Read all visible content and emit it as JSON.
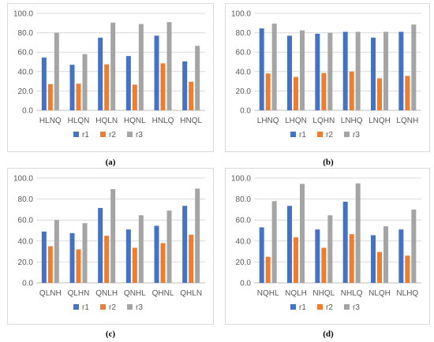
{
  "series_names": [
    "r1",
    "r2",
    "r3"
  ],
  "colors": {
    "r1": "#4472C4",
    "r2": "#ED7D31",
    "r3": "#A5A5A5",
    "grid": "#d9d9d9",
    "axis": "#bfbfbf"
  },
  "chart_data": [
    {
      "type": "bar",
      "caption": "(a)",
      "categories": [
        "HLNQ",
        "HLQN",
        "HQLN",
        "HQNL",
        "HNLQ",
        "HNQL"
      ],
      "series": [
        {
          "name": "r1",
          "values": [
            54.5,
            47.0,
            75.0,
            56.0,
            77.0,
            50.5
          ]
        },
        {
          "name": "r2",
          "values": [
            27.0,
            27.5,
            47.5,
            26.5,
            48.5,
            29.5
          ]
        },
        {
          "name": "r3",
          "values": [
            80.0,
            58.0,
            90.5,
            89.0,
            91.0,
            66.5
          ]
        }
      ],
      "ylim": [
        0,
        100
      ],
      "yticks": [
        "0.0",
        "20.0",
        "40.0",
        "60.0",
        "80.0",
        "100.0"
      ],
      "legend": "bottom"
    },
    {
      "type": "bar",
      "caption": "(b)",
      "categories": [
        "LHNQ",
        "LHQN",
        "LQHN",
        "LNHQ",
        "LNQH",
        "LQNH"
      ],
      "series": [
        {
          "name": "r1",
          "values": [
            84.5,
            77.0,
            79.0,
            81.0,
            75.0,
            81.0
          ]
        },
        {
          "name": "r2",
          "values": [
            38.0,
            34.5,
            38.5,
            40.0,
            33.0,
            35.5
          ]
        },
        {
          "name": "r3",
          "values": [
            89.5,
            82.5,
            80.0,
            81.0,
            81.0,
            88.5
          ]
        }
      ],
      "ylim": [
        0,
        100
      ],
      "yticks": [
        "0.0",
        "20.0",
        "40.0",
        "60.0",
        "80.0",
        "100.0"
      ],
      "legend": "bottom"
    },
    {
      "type": "bar",
      "caption": "(c)",
      "categories": [
        "QLNH",
        "QLHN",
        "QNLH",
        "QNHL",
        "QHNL",
        "QHLN"
      ],
      "series": [
        {
          "name": "r1",
          "values": [
            49.0,
            47.5,
            71.5,
            51.0,
            54.5,
            73.5
          ]
        },
        {
          "name": "r2",
          "values": [
            35.0,
            32.0,
            45.0,
            33.5,
            38.0,
            46.0
          ]
        },
        {
          "name": "r3",
          "values": [
            60.0,
            57.0,
            89.5,
            64.5,
            69.0,
            90.0
          ]
        }
      ],
      "ylim": [
        0,
        100
      ],
      "yticks": [
        "0.0",
        "20.0",
        "40.0",
        "60.0",
        "80.0",
        "100.0"
      ],
      "legend": "bottom"
    },
    {
      "type": "bar",
      "caption": "(d)",
      "categories": [
        "NQHL",
        "NQLH",
        "NHQL",
        "NHLQ",
        "NLQH",
        "NLHQ"
      ],
      "series": [
        {
          "name": "r1",
          "values": [
            53.0,
            73.5,
            51.0,
            77.5,
            45.5,
            51.0
          ]
        },
        {
          "name": "r2",
          "values": [
            25.0,
            43.5,
            33.5,
            46.5,
            29.5,
            26.0
          ]
        },
        {
          "name": "r3",
          "values": [
            78.0,
            94.5,
            64.5,
            95.0,
            54.0,
            70.0
          ]
        }
      ],
      "ylim": [
        0,
        100
      ],
      "yticks": [
        "0.0",
        "20.0",
        "40.0",
        "60.0",
        "80.0",
        "100.0"
      ],
      "legend": "bottom"
    }
  ]
}
